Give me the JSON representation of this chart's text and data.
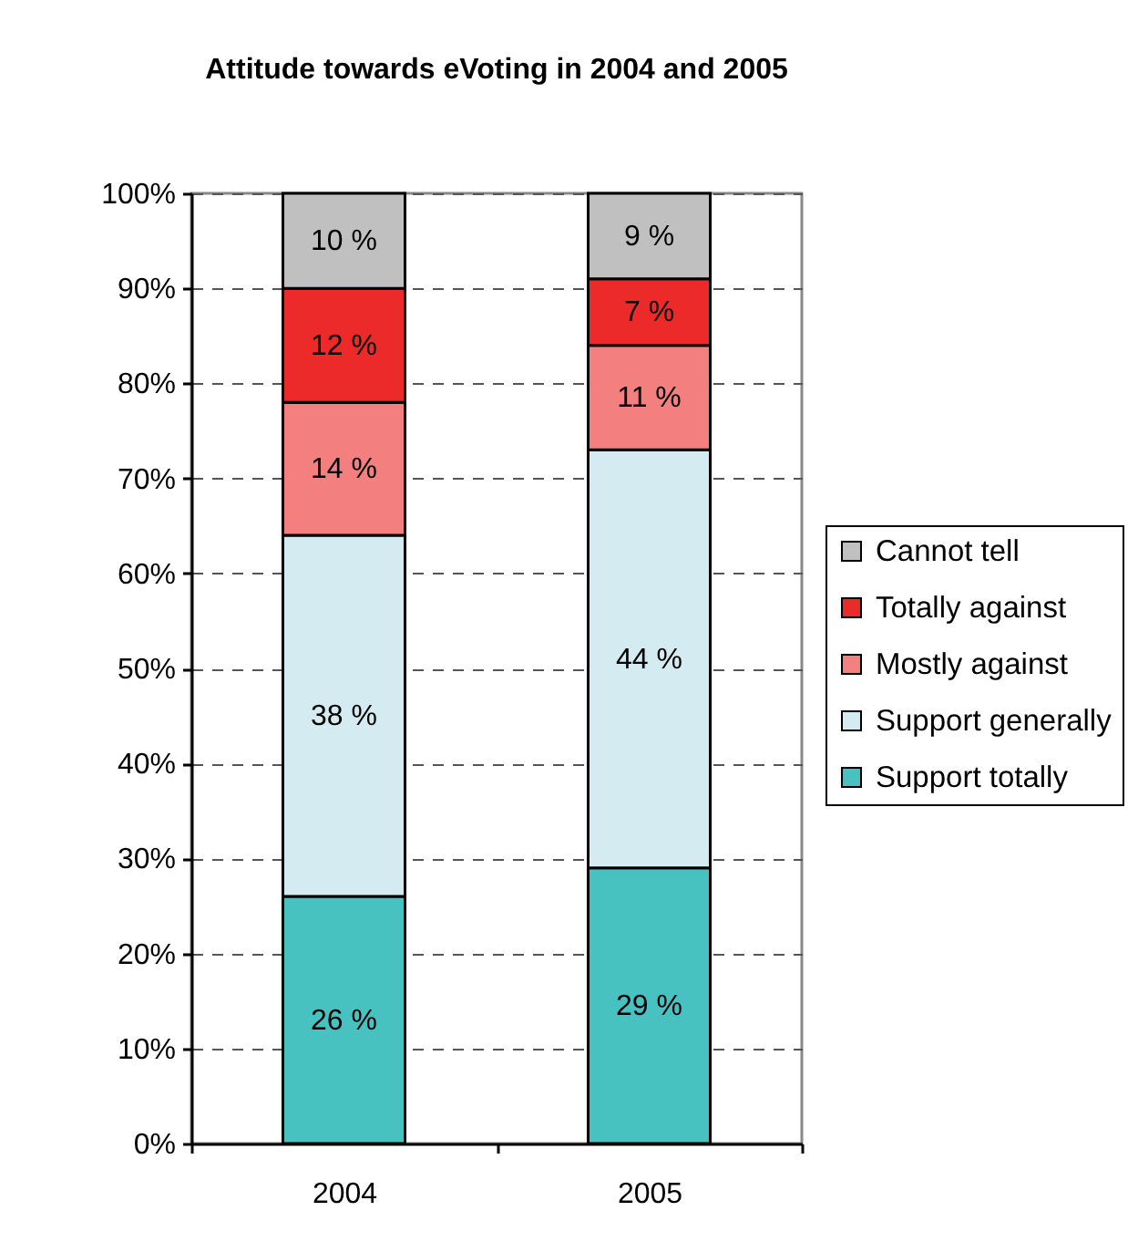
{
  "chart_data": {
    "type": "bar",
    "title": "Attitude towards eVoting in 2004 and 2005",
    "categories": [
      "2004",
      "2005"
    ],
    "stacked": true,
    "series": [
      {
        "name": "Support totally",
        "color": "#48c1c1",
        "values": [
          26,
          29
        ],
        "value_labels": [
          "26 %",
          "29 %"
        ]
      },
      {
        "name": "Support generally",
        "color": "#d3ebf1",
        "values": [
          38,
          44
        ],
        "value_labels": [
          "38 %",
          "44 %"
        ]
      },
      {
        "name": "Mostly against",
        "color": "#f37f7f",
        "values": [
          14,
          11
        ],
        "value_labels": [
          "14 %",
          "11 %"
        ]
      },
      {
        "name": "Totally against",
        "color": "#ec2a2a",
        "values": [
          12,
          7
        ],
        "value_labels": [
          "12 %",
          "7 %"
        ]
      },
      {
        "name": "Cannot tell",
        "color": "#c0c0c0",
        "values": [
          10,
          9
        ],
        "value_labels": [
          "10 %",
          "9 %"
        ]
      }
    ],
    "ylim": [
      0,
      100
    ],
    "yticks": [
      {
        "value": 0,
        "label": "0%"
      },
      {
        "value": 10,
        "label": "10%"
      },
      {
        "value": 20,
        "label": "20%"
      },
      {
        "value": 30,
        "label": "30%"
      },
      {
        "value": 40,
        "label": "40%"
      },
      {
        "value": 50,
        "label": "50%"
      },
      {
        "value": 60,
        "label": "60%"
      },
      {
        "value": 70,
        "label": "70%"
      },
      {
        "value": 80,
        "label": "80%"
      },
      {
        "value": 90,
        "label": "90%"
      },
      {
        "value": 100,
        "label": "100%"
      }
    ],
    "grid": "y",
    "legend": "right"
  }
}
